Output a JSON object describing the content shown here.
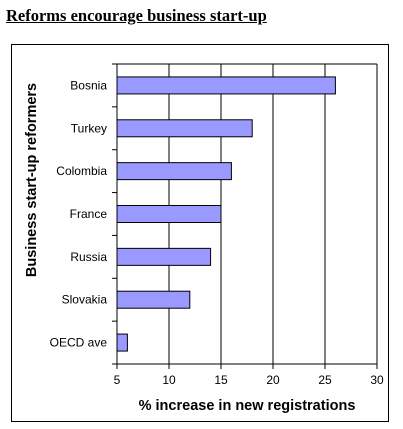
{
  "title": "Reforms encourage business start-up",
  "chart_data": {
    "type": "bar",
    "orientation": "horizontal",
    "categories": [
      "Bosnia",
      "Turkey",
      "Colombia",
      "France",
      "Russia",
      "Slovakia",
      "OECD ave"
    ],
    "values": [
      26,
      18,
      16,
      15,
      14,
      12,
      6
    ],
    "xlabel": "% increase in new registrations",
    "ylabel": "Business start-up reformers",
    "xlim": [
      5,
      30
    ],
    "xticks": [
      5,
      10,
      15,
      20,
      25,
      30
    ],
    "grid": "vertical",
    "legend": "none",
    "colors": {
      "bar": "#9999ff",
      "bar_edge": "#000000",
      "grid": "#000000"
    }
  }
}
